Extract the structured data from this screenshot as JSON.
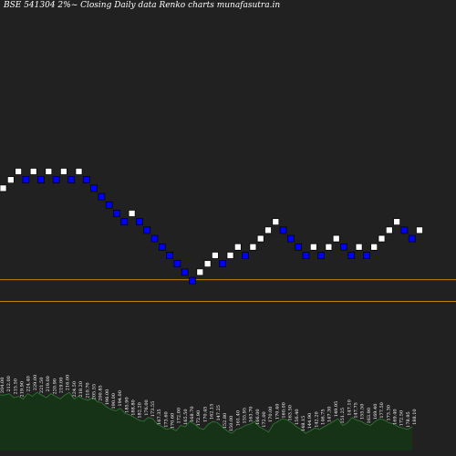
{
  "chart_data": {
    "type": "renko",
    "title": "BSE 541304  2%~  Closing Daily data  Renko  charts munafasutra.in",
    "brick_size_pct": 2,
    "reference_lines": [
      {
        "price": 196.27,
        "color": "#f5a300"
      },
      {
        "price": 186.54,
        "color": "#f5a300"
      }
    ],
    "colors": {
      "background": "#212121",
      "up_brick": "#ffffff",
      "down_brick": "#0000ff",
      "brick_border": "#000000",
      "volume_fill": "#173317",
      "volume_line": "#2e7d32",
      "text": "#ffffff"
    },
    "bricks": [
      {
        "dir": "up",
        "price": 243.58
      },
      {
        "dir": "up",
        "price": 248.45
      },
      {
        "dir": "up",
        "price": 253.42
      },
      {
        "dir": "down",
        "price": 248.45
      },
      {
        "dir": "up",
        "price": 253.42
      },
      {
        "dir": "down",
        "price": 248.45
      },
      {
        "dir": "up",
        "price": 253.42
      },
      {
        "dir": "down",
        "price": 248.45
      },
      {
        "dir": "up",
        "price": 253.42
      },
      {
        "dir": "down",
        "price": 248.45
      },
      {
        "dir": "up",
        "price": 253.42
      },
      {
        "dir": "down",
        "price": 248.45
      },
      {
        "dir": "down",
        "price": 243.58
      },
      {
        "dir": "down",
        "price": 238.8
      },
      {
        "dir": "down",
        "price": 234.12
      },
      {
        "dir": "down",
        "price": 229.53
      },
      {
        "dir": "down",
        "price": 225.03
      },
      {
        "dir": "up",
        "price": 229.53
      },
      {
        "dir": "down",
        "price": 225.03
      },
      {
        "dir": "down",
        "price": 220.62
      },
      {
        "dir": "down",
        "price": 216.29
      },
      {
        "dir": "down",
        "price": 212.05
      },
      {
        "dir": "down",
        "price": 207.89
      },
      {
        "dir": "down",
        "price": 203.81
      },
      {
        "dir": "down",
        "price": 199.82
      },
      {
        "dir": "down",
        "price": 195.9
      },
      {
        "dir": "up",
        "price": 199.82
      },
      {
        "dir": "up",
        "price": 203.81
      },
      {
        "dir": "up",
        "price": 207.89
      },
      {
        "dir": "down",
        "price": 203.81
      },
      {
        "dir": "up",
        "price": 207.89
      },
      {
        "dir": "up",
        "price": 212.05
      },
      {
        "dir": "down",
        "price": 207.89
      },
      {
        "dir": "up",
        "price": 212.05
      },
      {
        "dir": "up",
        "price": 216.29
      },
      {
        "dir": "up",
        "price": 220.62
      },
      {
        "dir": "up",
        "price": 225.03
      },
      {
        "dir": "down",
        "price": 220.62
      },
      {
        "dir": "down",
        "price": 216.29
      },
      {
        "dir": "down",
        "price": 212.05
      },
      {
        "dir": "down",
        "price": 207.89
      },
      {
        "dir": "up",
        "price": 212.05
      },
      {
        "dir": "down",
        "price": 207.89
      },
      {
        "dir": "up",
        "price": 212.05
      },
      {
        "dir": "up",
        "price": 216.29
      },
      {
        "dir": "down",
        "price": 212.05
      },
      {
        "dir": "down",
        "price": 207.89
      },
      {
        "dir": "up",
        "price": 212.05
      },
      {
        "dir": "down",
        "price": 207.89
      },
      {
        "dir": "up",
        "price": 212.05
      },
      {
        "dir": "up",
        "price": 216.29
      },
      {
        "dir": "up",
        "price": 220.62
      },
      {
        "dir": "up",
        "price": 225.03
      },
      {
        "dir": "down",
        "price": 220.62
      },
      {
        "dir": "down",
        "price": 216.29
      },
      {
        "dir": "up",
        "price": 220.62
      }
    ],
    "tick_labels": [
      "204.00",
      "212.00",
      "215.50",
      "219.90",
      "224.40",
      "229.00",
      "221.50",
      "219.00",
      "220.90",
      "219.00",
      "216.00",
      "224.50",
      "218.20",
      "210.70",
      "205.55",
      "200.85",
      "196.00",
      "190.00",
      "194.00",
      "185.90",
      "188.80",
      "182.20",
      "176.00",
      "173.55",
      "167.35",
      "173.60",
      "170.60",
      "172.00",
      "165.50",
      "168.70",
      "172.90",
      "170.45",
      "162.15",
      "147.25",
      "152.80",
      "150.00",
      "161.40",
      "155.95",
      "163.70",
      "166.00",
      "172.00",
      "170.00",
      "170.40",
      "160.00",
      "163.50",
      "156.40",
      "148.15",
      "144.90",
      "142.20",
      "146.75",
      "147.30",
      "149.95",
      "151.25",
      "147.10",
      "147.75",
      "155.50",
      "163.90",
      "169.40",
      "177.50",
      "173.30",
      "169.40",
      "172.50",
      "178.95",
      "188.10"
    ],
    "volume": [
      42,
      42,
      43,
      40,
      41,
      39,
      43,
      41,
      44,
      42,
      40,
      43,
      41,
      39,
      42,
      44,
      39,
      41,
      39,
      38,
      40,
      37,
      36,
      33,
      31,
      30,
      32,
      28,
      27,
      25,
      23,
      22,
      25,
      24,
      20,
      18,
      16,
      17,
      15,
      19,
      18,
      22,
      20,
      17,
      16,
      20,
      22,
      21,
      18,
      15,
      13,
      16,
      17,
      19,
      20,
      22,
      18,
      16,
      14,
      20,
      22,
      24,
      23,
      21,
      18,
      16,
      13,
      15,
      17,
      16,
      18,
      20,
      22,
      24,
      19,
      21,
      25,
      23,
      22,
      20,
      19,
      22,
      24,
      23,
      21,
      20,
      18,
      17,
      16,
      18
    ]
  }
}
